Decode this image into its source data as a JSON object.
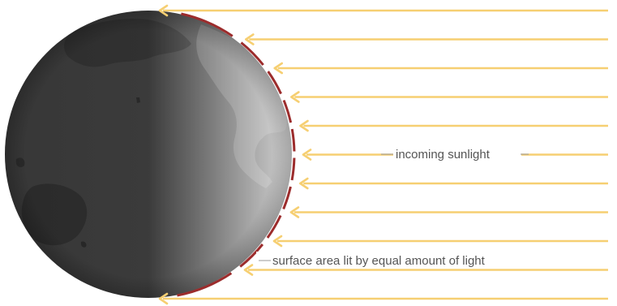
{
  "labels": {
    "sunlight": "incoming sunlight",
    "surface": "surface area lit by equal amount of light"
  },
  "colors": {
    "sun_arrow": "#f6cf72",
    "surface_arc": "#9c2c2c",
    "earth_dark": "#3a3a3a",
    "earth_light": "#d2d2d2",
    "leader_line": "#9a9a9a",
    "label_text": "#555555"
  },
  "sunlight_ray_count": 11,
  "surface_segment_count": 10
}
